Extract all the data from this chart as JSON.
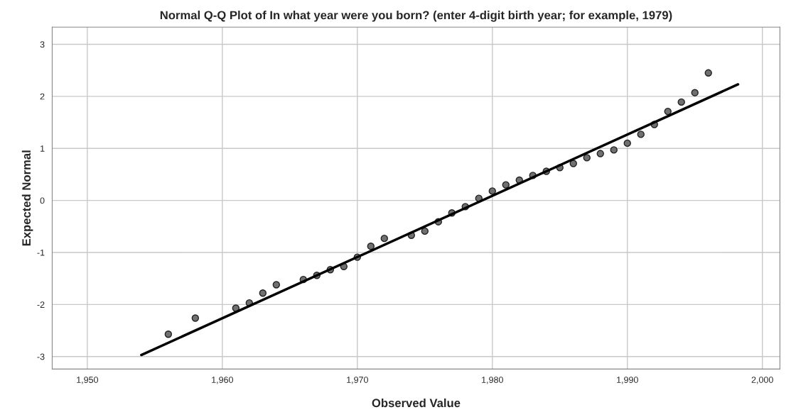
{
  "chart_data": {
    "type": "scatter",
    "title": "Normal Q-Q Plot of In what year were you born? (enter 4-digit birth year; for example, 1979)",
    "xlabel": "Observed Value",
    "ylabel": "Expected Normal",
    "x": [
      1956,
      1958,
      1961,
      1962,
      1963,
      1964,
      1966,
      1967,
      1968,
      1969,
      1970,
      1971,
      1972,
      1974,
      1975,
      1976,
      1977,
      1978,
      1979,
      1980,
      1981,
      1982,
      1983,
      1984,
      1985,
      1986,
      1987,
      1988,
      1989,
      1990,
      1991,
      1992,
      1993,
      1994,
      1995,
      1996
    ],
    "series": [
      {
        "color": "#707070",
        "marker": "circle",
        "values": [
          -2.57,
          -2.26,
          -2.07,
          -1.97,
          -1.78,
          -1.62,
          -1.52,
          -1.44,
          -1.33,
          -1.27,
          -1.09,
          -0.88,
          -0.73,
          -0.67,
          -0.59,
          -0.41,
          -0.24,
          -0.12,
          0.04,
          0.18,
          0.3,
          0.39,
          0.48,
          0.56,
          0.63,
          0.71,
          0.82,
          0.9,
          0.97,
          1.1,
          1.27,
          1.46,
          1.71,
          1.89,
          2.07,
          2.45
        ]
      },
      {
        "type": "line",
        "color": "#000000",
        "marker": "none",
        "x": [
          1954,
          1998.2
        ],
        "values": [
          -2.97,
          2.23
        ]
      }
    ],
    "xlim": [
      1947.4,
      2001.3
    ],
    "ylim": [
      -3.24,
      3.33
    ],
    "xticks": [
      {
        "value": 1950,
        "label": "1,950"
      },
      {
        "value": 1960,
        "label": "1,960"
      },
      {
        "value": 1970,
        "label": "1,970"
      },
      {
        "value": 1980,
        "label": "1,980"
      },
      {
        "value": 1990,
        "label": "1,990"
      },
      {
        "value": 2000,
        "label": "2,000"
      }
    ],
    "yticks": [
      -3,
      -2,
      -1,
      0,
      1,
      2,
      3
    ],
    "grid": true,
    "legend": false
  }
}
